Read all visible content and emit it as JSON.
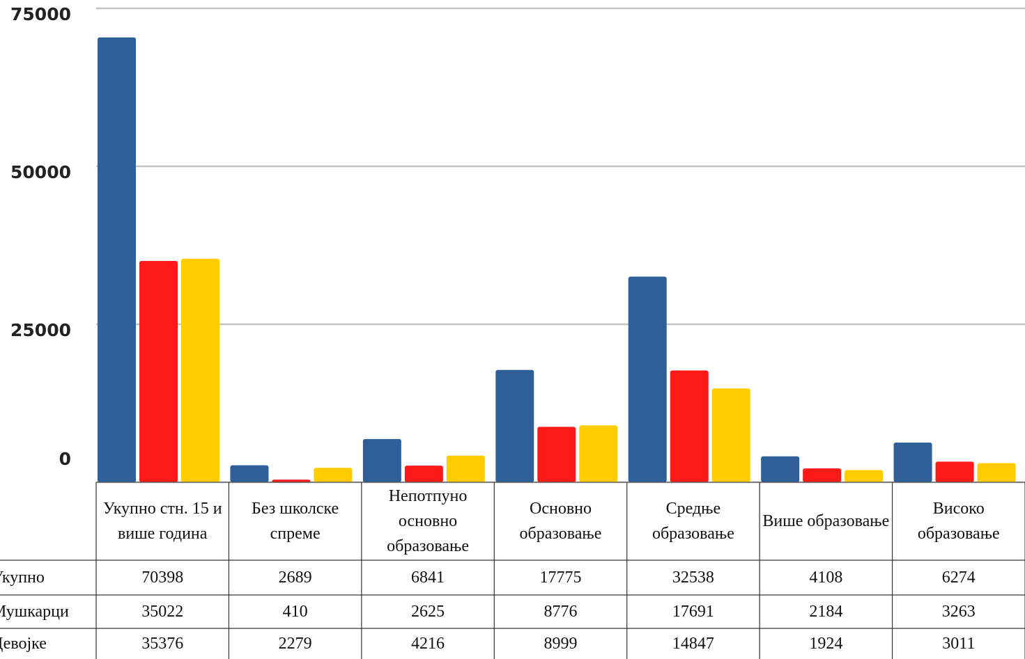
{
  "chart_data": {
    "type": "bar",
    "categories": [
      "Укупно стн. 15 и више година",
      "Без школске спреме",
      "Непотпуно основно образовање",
      "Основно образовање",
      "Средње образовање",
      "Више образовање",
      "Високо образовање"
    ],
    "series": [
      {
        "name": "Укупно",
        "color": "#2e5f98",
        "values": [
          70398,
          2689,
          6841,
          17775,
          32538,
          4108,
          6274
        ]
      },
      {
        "name": "Мушкарци",
        "color": "#ff1a1a",
        "values": [
          35022,
          410,
          2625,
          8776,
          17691,
          2184,
          3263
        ]
      },
      {
        "name": "Девојке",
        "color": "#ffcc00",
        "values": [
          35376,
          2279,
          4216,
          8999,
          14847,
          1924,
          3011
        ]
      }
    ],
    "ylim": [
      0,
      75000
    ],
    "yticks": [
      0,
      25000,
      50000,
      75000
    ],
    "grid": true
  }
}
